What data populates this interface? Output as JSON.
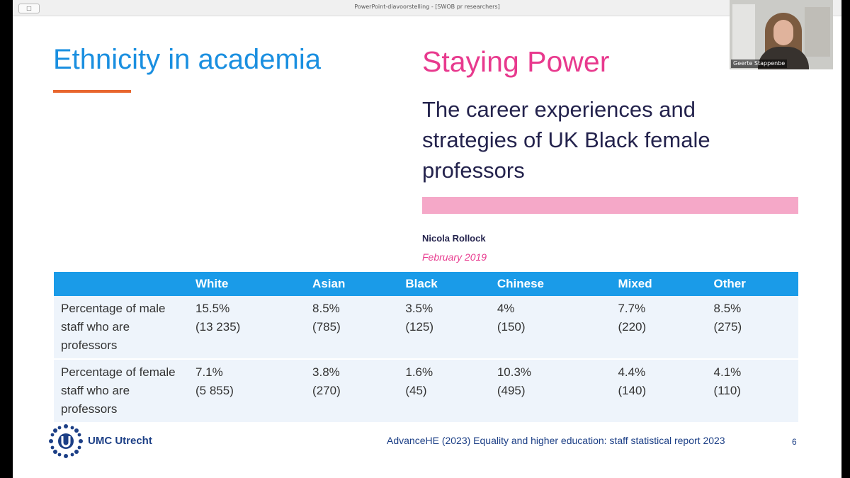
{
  "window": {
    "title": "PowerPoint-diavoorstelling - [SWOB pr researchers]",
    "button_label": "□"
  },
  "slide": {
    "title": "Ethnicity in academia",
    "cover": {
      "title": "Staying Power",
      "subtitle": "The career experiences and strategies of UK Black female professors",
      "author": "Nicola Rollock",
      "date": "February 2019"
    },
    "table": {
      "headers": [
        "",
        "White",
        "Asian",
        "Black",
        "Chinese",
        "Mixed",
        "Other"
      ],
      "rows": [
        {
          "label": "Percentage of male staff who are professors",
          "cells": [
            {
              "pct": "15.5%",
              "count": "(13 235)"
            },
            {
              "pct": "8.5%",
              "count": "(785)"
            },
            {
              "pct": "3.5%",
              "count": "(125)"
            },
            {
              "pct": "4%",
              "count": "(150)"
            },
            {
              "pct": "7.7%",
              "count": "(220)"
            },
            {
              "pct": "8.5%",
              "count": "(275)"
            }
          ]
        },
        {
          "label": "Percentage of female staff who are professors",
          "cells": [
            {
              "pct": "7.1%",
              "count": "(5 855)"
            },
            {
              "pct": "3.8%",
              "count": "(270)"
            },
            {
              "pct": "1.6%",
              "count": "(45)"
            },
            {
              "pct": "10.3%",
              "count": "(495)"
            },
            {
              "pct": "4.4%",
              "count": "(140)"
            },
            {
              "pct": "4.1%",
              "count": "(110)"
            }
          ]
        }
      ]
    },
    "logo_text": "UMC Utrecht",
    "source": "AdvanceHE (2023) Equality and higher education: staff statistical report 2023",
    "page_number": "6"
  },
  "video": {
    "participant_name": "Geerte Stappenbe"
  },
  "colors": {
    "title_blue": "#1a8fe0",
    "accent_orange": "#e8662e",
    "pink": "#e83a8e",
    "table_header": "#1a9be8",
    "navy": "#1c3f86"
  }
}
